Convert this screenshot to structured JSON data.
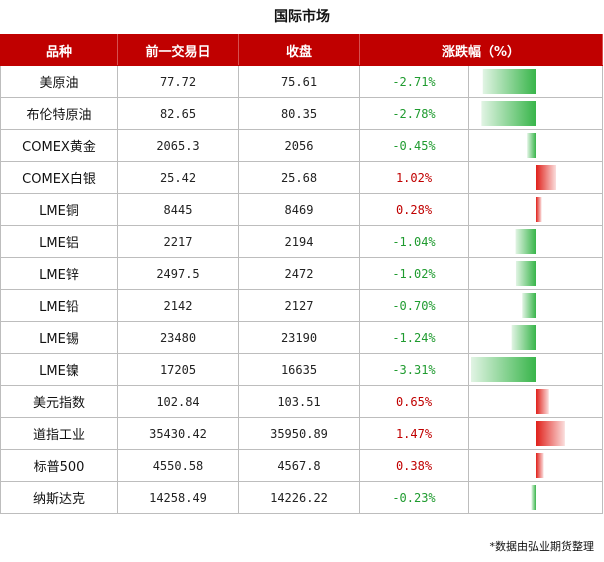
{
  "title": "国际市场",
  "footnote": "*数据由弘业期货整理",
  "headers": {
    "name": "品种",
    "prev": "前一交易日",
    "close": "收盘",
    "change": "涨跌幅（%）"
  },
  "colors": {
    "header_bg": "#c00000",
    "up": "#c00000",
    "down": "#1f9b2f",
    "bar_up": "#e0201a",
    "bar_down": "#38b54a"
  },
  "chart_data": {
    "type": "table",
    "title": "国际市场",
    "columns": [
      "品种",
      "前一交易日",
      "收盘",
      "涨跌幅（%）"
    ],
    "rows": [
      {
        "name": "美原油",
        "prev": "77.72",
        "close": "75.61",
        "change_text": "-2.71%",
        "change": -2.71
      },
      {
        "name": "布伦特原油",
        "prev": "82.65",
        "close": "80.35",
        "change_text": "-2.78%",
        "change": -2.78
      },
      {
        "name": "COMEX黄金",
        "prev": "2065.3",
        "close": "2056",
        "change_text": "-0.45%",
        "change": -0.45
      },
      {
        "name": "COMEX白银",
        "prev": "25.42",
        "close": "25.68",
        "change_text": "1.02%",
        "change": 1.02
      },
      {
        "name": "LME铜",
        "prev": "8445",
        "close": "8469",
        "change_text": "0.28%",
        "change": 0.28
      },
      {
        "name": "LME铝",
        "prev": "2217",
        "close": "2194",
        "change_text": "-1.04%",
        "change": -1.04
      },
      {
        "name": "LME锌",
        "prev": "2497.5",
        "close": "2472",
        "change_text": "-1.02%",
        "change": -1.02
      },
      {
        "name": "LME铅",
        "prev": "2142",
        "close": "2127",
        "change_text": "-0.70%",
        "change": -0.7
      },
      {
        "name": "LME锡",
        "prev": "23480",
        "close": "23190",
        "change_text": "-1.24%",
        "change": -1.24
      },
      {
        "name": "LME镍",
        "prev": "17205",
        "close": "16635",
        "change_text": "-3.31%",
        "change": -3.31
      },
      {
        "name": "美元指数",
        "prev": "102.84",
        "close": "103.51",
        "change_text": "0.65%",
        "change": 0.65
      },
      {
        "name": "道指工业",
        "prev": "35430.42",
        "close": "35950.89",
        "change_text": "1.47%",
        "change": 1.47
      },
      {
        "name": "标普500",
        "prev": "4550.58",
        "close": "4567.8",
        "change_text": "0.38%",
        "change": 0.38
      },
      {
        "name": "纳斯达克",
        "prev": "14258.49",
        "close": "14226.22",
        "change_text": "-0.23%",
        "change": -0.23
      }
    ]
  }
}
